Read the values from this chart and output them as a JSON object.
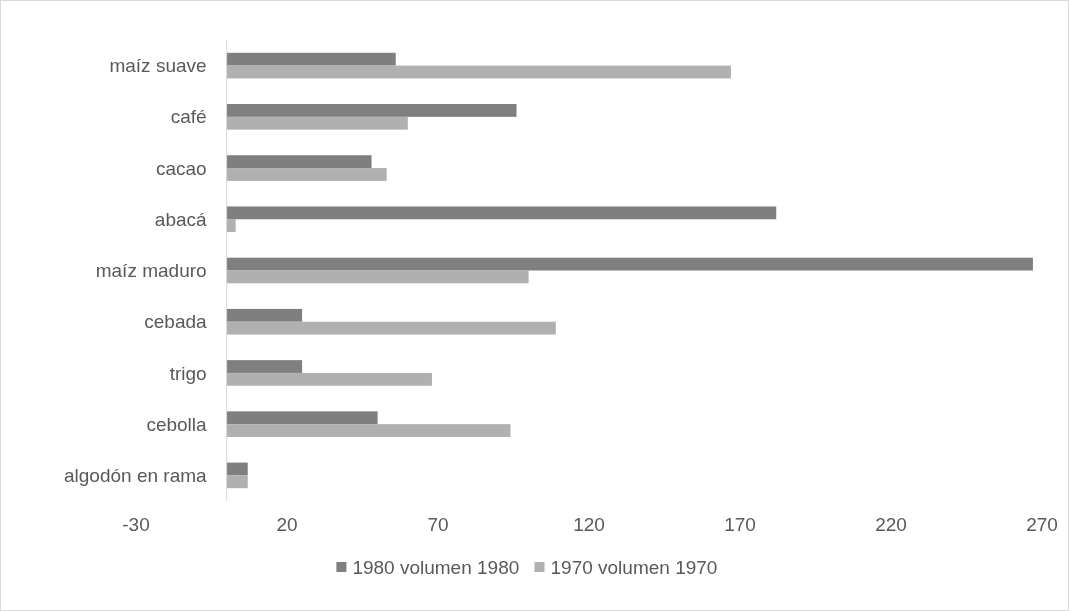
{
  "chart_data": {
    "type": "bar",
    "orientation": "horizontal",
    "categories": [
      "maíz suave",
      "café",
      "cacao",
      "abacá",
      "maíz maduro",
      "cebada",
      "trigo",
      "cebolla",
      "algodón en rama"
    ],
    "series": [
      {
        "name": "1980 volumen 1980",
        "color": "#7f7f7f",
        "values": [
          56,
          96,
          48,
          182,
          267,
          25,
          25,
          50,
          7
        ]
      },
      {
        "name": "1970 volumen 1970",
        "color": "#b0b0b0",
        "values": [
          167,
          60,
          53,
          3,
          100,
          109,
          68,
          94,
          7
        ]
      }
    ],
    "xlim": [
      -30,
      270
    ],
    "xticks": [
      -30,
      20,
      70,
      120,
      170,
      220,
      270
    ],
    "grid": false,
    "legend": "bottom"
  }
}
